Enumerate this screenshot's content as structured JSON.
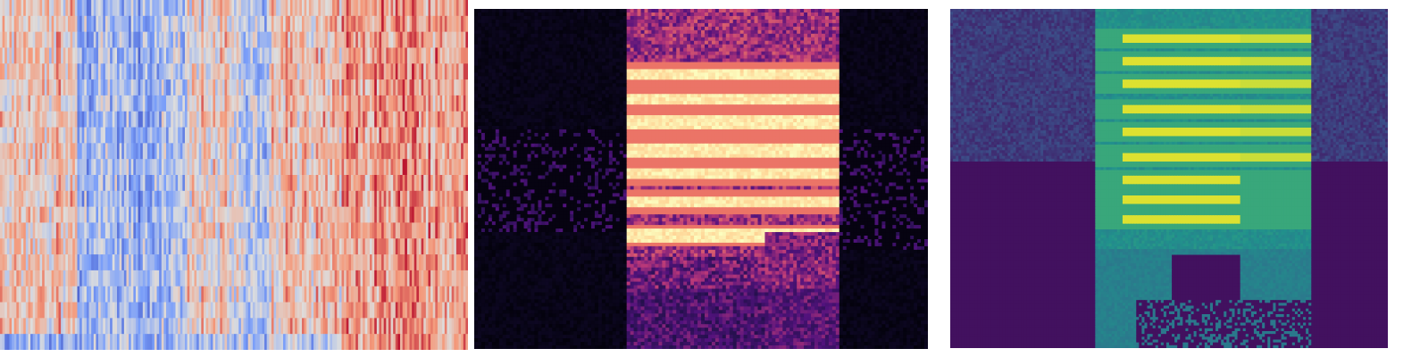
{
  "chart_data": [
    {
      "type": "heatmap",
      "colormap": "coolwarm",
      "rows": 22,
      "columns": 200,
      "labels_shown": false,
      "axes_shown": false,
      "colors": {
        "low": "#3b4cc0",
        "mid": "#dddddd",
        "high": "#b40426"
      }
    },
    {
      "type": "heatmap",
      "colormap": "magma",
      "rows": 96,
      "columns": 128,
      "labels_shown": false,
      "axes_shown": false,
      "colors": {
        "low": "#000004",
        "mid": "#b73779",
        "high": "#fcfdbf"
      }
    },
    {
      "type": "heatmap",
      "colormap": "viridis",
      "rows": 120,
      "columns": 160,
      "labels_shown": false,
      "axes_shown": false,
      "colors": {
        "low": "#440154",
        "mid": "#21918c",
        "high": "#fde725"
      }
    }
  ]
}
